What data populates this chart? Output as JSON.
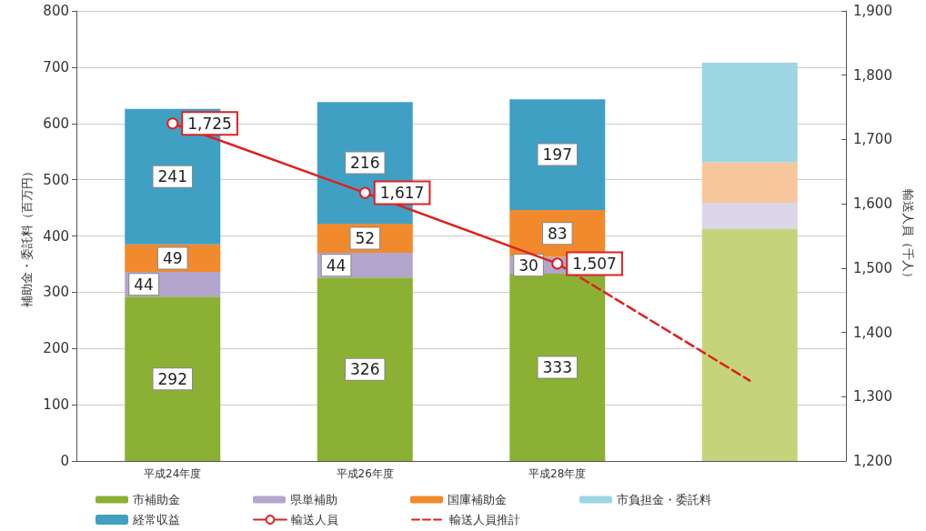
{
  "chart_data": {
    "type": "bar",
    "stacked": true,
    "ylabel": "補助金・委託料（百万円）",
    "y2label": "輸送人員（千人）",
    "categories": [
      "平成24年度",
      "平成26年度",
      "平成28年度",
      null
    ],
    "series": [
      {
        "name": "市補助金",
        "color": "#8cb034",
        "colors": [
          "#8cb034",
          "#8cb034",
          "#8cb034",
          "#c5d47a"
        ],
        "values": [
          292,
          326,
          333,
          412
        ],
        "value_labels": [
          "292",
          "326",
          "333",
          null
        ]
      },
      {
        "name": "県単補助",
        "color": "#b3a6cc",
        "colors": [
          "#b3a6cc",
          "#b3a6cc",
          "#b3a6cc",
          "#dcd6e8"
        ],
        "values": [
          44,
          44,
          30,
          47
        ],
        "value_labels": [
          "44",
          "44",
          "30",
          null
        ]
      },
      {
        "name": "国庫補助金",
        "color": "#f08a2c",
        "colors": [
          "#f08a2c",
          "#f08a2c",
          "#f08a2c",
          "#f8c69c"
        ],
        "values": [
          49,
          52,
          83,
          72
        ],
        "value_labels": [
          "49",
          "52",
          "83",
          null
        ]
      },
      {
        "name": "市負担金・委託料",
        "color": "#9dd5e3",
        "values": [
          null,
          null,
          null,
          177
        ]
      },
      {
        "name": "経常収益",
        "color": "#3fa0c4",
        "values": [
          241,
          216,
          197,
          null
        ],
        "value_labels": [
          "241",
          "216",
          "197",
          null
        ]
      },
      {
        "name": "輸送人員",
        "type": "line",
        "axis": "y2",
        "color": "#e02020",
        "marker": "circle",
        "line_style": "solid",
        "values": [
          1725,
          1617,
          1507,
          null
        ],
        "value_labels": [
          "1,725",
          "1,617",
          "1,507",
          null
        ]
      },
      {
        "name": "輸送人員推計",
        "type": "line",
        "axis": "y2",
        "color": "#e02020",
        "marker": "none",
        "line_style": "dashed",
        "values": [
          null,
          null,
          1507,
          1325
        ]
      }
    ],
    "ylim": [
      0,
      800
    ],
    "yticks": [
      0,
      100,
      200,
      300,
      400,
      500,
      600,
      700,
      800
    ],
    "y2lim": [
      1200,
      1900
    ],
    "y2ticks": [
      {
        "value": 1200,
        "label": "1,200"
      },
      {
        "value": 1300,
        "label": "1,300"
      },
      {
        "value": 1400,
        "label": "1,400"
      },
      {
        "value": 1500,
        "label": "1,500"
      },
      {
        "value": 1600,
        "label": "1,600"
      },
      {
        "value": 1700,
        "label": "1,700"
      },
      {
        "value": 1800,
        "label": "1,800"
      },
      {
        "value": 1900,
        "label": "1,900"
      }
    ],
    "grid": "y",
    "legend": "bottom"
  }
}
